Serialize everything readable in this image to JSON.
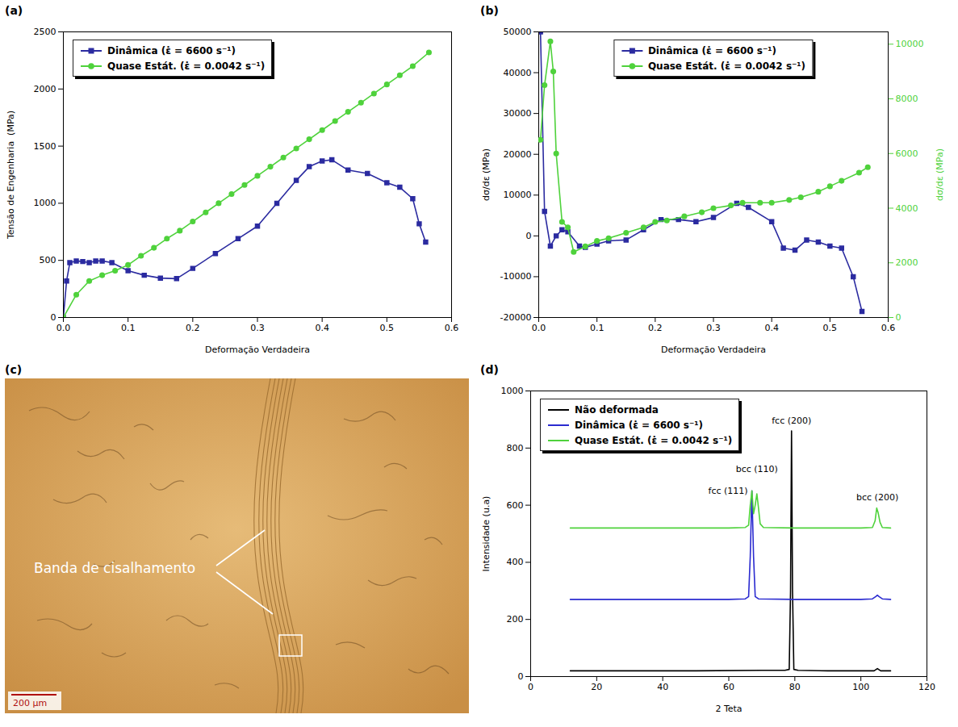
{
  "chart_data": [
    {
      "panel": "(a)",
      "type": "line",
      "x_label": "Deformação Verdadeira",
      "y_label": "Tensão de Engenharia  (MPa)",
      "xlim": [
        0,
        0.6
      ],
      "xticks": [
        {
          "value": 0,
          "label": "0.0"
        },
        0.1,
        0.2,
        0.3,
        0.4,
        0.5,
        0.6
      ],
      "ylim": [
        0,
        2500
      ],
      "yticks": [
        0,
        500,
        1000,
        1500,
        2000,
        2500
      ],
      "legend": "top-left",
      "series": [
        {
          "name": "Dinâmica (ε̇ = 6600 s⁻¹)",
          "color": "#2b2ba0",
          "marker": "square",
          "x": [
            0,
            0.005,
            0.01,
            0.02,
            0.03,
            0.04,
            0.05,
            0.06,
            0.075,
            0.1,
            0.125,
            0.15,
            0.175,
            0.2,
            0.235,
            0.27,
            0.3,
            0.33,
            0.36,
            0.38,
            0.4,
            0.415,
            0.44,
            0.47,
            0.5,
            0.52,
            0.54,
            0.55,
            0.56
          ],
          "values": [
            0,
            320,
            480,
            495,
            490,
            480,
            495,
            495,
            480,
            410,
            370,
            345,
            340,
            430,
            560,
            690,
            800,
            1000,
            1200,
            1320,
            1370,
            1380,
            1290,
            1260,
            1180,
            1140,
            1040,
            820,
            660
          ]
        },
        {
          "name": "Quase Estát. (ε̇ = 0.0042 s⁻¹)",
          "color": "#4fd23c",
          "marker": "circle",
          "x": [
            0,
            0.02,
            0.04,
            0.06,
            0.08,
            0.1,
            0.12,
            0.14,
            0.16,
            0.18,
            0.2,
            0.22,
            0.24,
            0.26,
            0.28,
            0.3,
            0.32,
            0.34,
            0.36,
            0.38,
            0.4,
            0.42,
            0.44,
            0.46,
            0.48,
            0.5,
            0.52,
            0.54,
            0.565
          ],
          "values": [
            0,
            200,
            320,
            370,
            410,
            460,
            540,
            610,
            690,
            760,
            840,
            920,
            1000,
            1080,
            1160,
            1240,
            1320,
            1400,
            1480,
            1560,
            1640,
            1720,
            1800,
            1880,
            1960,
            2040,
            2120,
            2200,
            2320
          ]
        }
      ]
    },
    {
      "panel": "(b)",
      "type": "line",
      "x_label": "Deformação Verdadeira",
      "y_label": "dσ/dε (MPa)",
      "y2_label": "dσ/dε (MPa)",
      "xlim": [
        0,
        0.6
      ],
      "xticks": [
        {
          "value": 0,
          "label": "0.0"
        },
        0.1,
        0.2,
        0.3,
        0.4,
        0.5,
        0.6
      ],
      "ylim": [
        -20000,
        50000
      ],
      "yticks": [
        -20000,
        -10000,
        0,
        10000,
        20000,
        30000,
        40000,
        50000
      ],
      "y2lim": [
        0,
        10450
      ],
      "y2ticks": [
        0,
        2000,
        4000,
        6000,
        8000,
        10000
      ],
      "legend": "top",
      "series": [
        {
          "name": "Dinâmica (ε̇ = 6600 s⁻¹)",
          "color": "#2b2ba0",
          "marker": "square",
          "x": [
            0.003,
            0.01,
            0.02,
            0.03,
            0.04,
            0.05,
            0.07,
            0.08,
            0.1,
            0.12,
            0.15,
            0.18,
            0.21,
            0.24,
            0.27,
            0.3,
            0.34,
            0.36,
            0.4,
            0.42,
            0.44,
            0.46,
            0.48,
            0.5,
            0.52,
            0.54,
            0.555
          ],
          "values": [
            50000,
            6000,
            -2500,
            0,
            1500,
            1000,
            -2500,
            -2800,
            -2000,
            -1200,
            -1000,
            1500,
            4000,
            4000,
            3500,
            4500,
            8000,
            7000,
            3500,
            -3000,
            -3500,
            -1000,
            -1500,
            -2500,
            -3000,
            -10000,
            -18500
          ]
        },
        {
          "name": "Quase Estát. (ε̇ = 0.0042 s⁻¹)",
          "color": "#4fd23c",
          "marker": "circle",
          "axis": "y2",
          "x": [
            0.003,
            0.01,
            0.02,
            0.025,
            0.03,
            0.04,
            0.05,
            0.06,
            0.08,
            0.1,
            0.12,
            0.15,
            0.18,
            0.2,
            0.22,
            0.25,
            0.28,
            0.3,
            0.33,
            0.35,
            0.38,
            0.4,
            0.43,
            0.45,
            0.48,
            0.5,
            0.52,
            0.55,
            0.565
          ],
          "values": [
            6500,
            8500,
            10100,
            9000,
            6000,
            3500,
            3300,
            2400,
            2600,
            2800,
            2900,
            3100,
            3300,
            3500,
            3550,
            3700,
            3850,
            4000,
            4100,
            4200,
            4200,
            4200,
            4300,
            4400,
            4600,
            4800,
            5000,
            5300,
            5500
          ]
        }
      ]
    },
    {
      "panel": "(c)",
      "type": "image",
      "annotation": "Banda de cisalhamento",
      "scale_bar": "200 µm"
    },
    {
      "panel": "(d)",
      "type": "line",
      "x_label": "2 Teta",
      "y_label": "Intensidade (u.a)",
      "xlim": [
        0,
        120
      ],
      "xticks": [
        0,
        20,
        40,
        60,
        80,
        100,
        120
      ],
      "ylim": [
        0,
        1000
      ],
      "yticks": [
        0,
        200,
        400,
        600,
        800,
        1000
      ],
      "legend": "top-left",
      "series": [
        {
          "name": "Não deformada",
          "color": "#000000",
          "x": [
            12,
            30,
            50,
            70,
            77,
            78.3,
            78.7,
            79,
            79.3,
            79.7,
            81,
            90,
            100,
            104,
            105,
            106,
            109
          ],
          "values": [
            20,
            20,
            20,
            22,
            22,
            25,
            300,
            860,
            300,
            25,
            22,
            20,
            20,
            20,
            28,
            20,
            20
          ]
        },
        {
          "name": "Dinâmica (ε̇ = 6600 s⁻¹)",
          "color": "#2b2bd0",
          "x": [
            12,
            30,
            50,
            60,
            65,
            66,
            66.5,
            67,
            67.5,
            68,
            69,
            80,
            100,
            103.5,
            104.5,
            105,
            105.5,
            106.5,
            109
          ],
          "values": [
            270,
            270,
            270,
            270,
            272,
            280,
            420,
            650,
            420,
            280,
            272,
            270,
            270,
            272,
            280,
            285,
            280,
            272,
            270
          ]
        },
        {
          "name": "Quase Estát. (ε̇ = 0.0042 s⁻¹)",
          "color": "#4fd23c",
          "x": [
            12,
            30,
            50,
            60,
            65,
            66,
            66.5,
            67,
            67.5,
            68,
            68.5,
            69,
            69.5,
            70.5,
            80,
            100,
            103.5,
            104.3,
            104.8,
            105.2,
            105.8,
            106.5,
            109
          ],
          "values": [
            520,
            520,
            520,
            520,
            522,
            530,
            600,
            650,
            570,
            600,
            640,
            590,
            535,
            522,
            520,
            520,
            522,
            545,
            590,
            575,
            540,
            522,
            520
          ]
        }
      ],
      "annotations": [
        {
          "text": "fcc (111)",
          "x": 67,
          "y": 650
        },
        {
          "text": "bcc (110)",
          "x": 68.5,
          "y": 640
        },
        {
          "text": "fcc (200)",
          "x": 79,
          "y": 860
        },
        {
          "text": "bcc (200)",
          "x": 105,
          "y": 590
        }
      ]
    }
  ]
}
